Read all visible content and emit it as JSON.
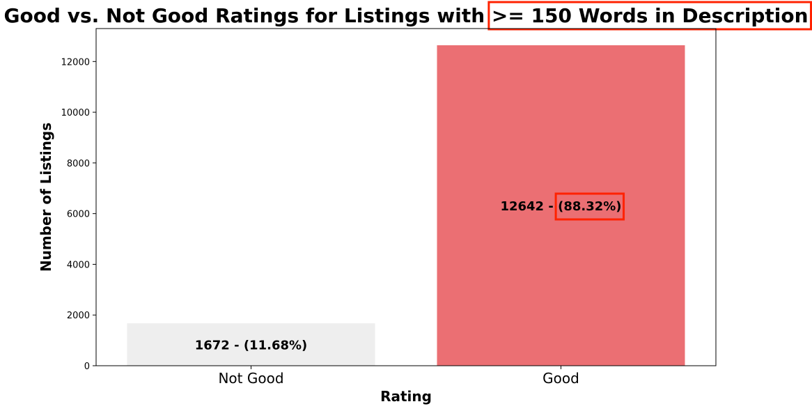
{
  "chart_data": {
    "type": "bar",
    "title": "Good vs. Not Good Ratings for Listings with >= 150 Words in Description",
    "title_prefix": "Good vs. Not Good Ratings for Listings with ",
    "title_highlight": ">= 150 Words in Description",
    "xlabel": "Rating",
    "ylabel": "Number of Listings",
    "categories": [
      "Not Good",
      "Good"
    ],
    "values": [
      1672,
      12642
    ],
    "bar_labels": [
      "1672 - (11.68%)",
      "12642 - (88.32%)"
    ],
    "bar_label_parts": [
      {
        "count": "1672 - ",
        "pct": "(11.68%)"
      },
      {
        "count": "12642 - ",
        "pct": "(88.32%)"
      }
    ],
    "colors": [
      "#eeeeee",
      "#eb6f73"
    ],
    "ylim": [
      0,
      13300
    ],
    "yticks": [
      0,
      2000,
      4000,
      6000,
      8000,
      10000,
      12000
    ],
    "grid": false,
    "highlight_color": "#ff2200"
  }
}
